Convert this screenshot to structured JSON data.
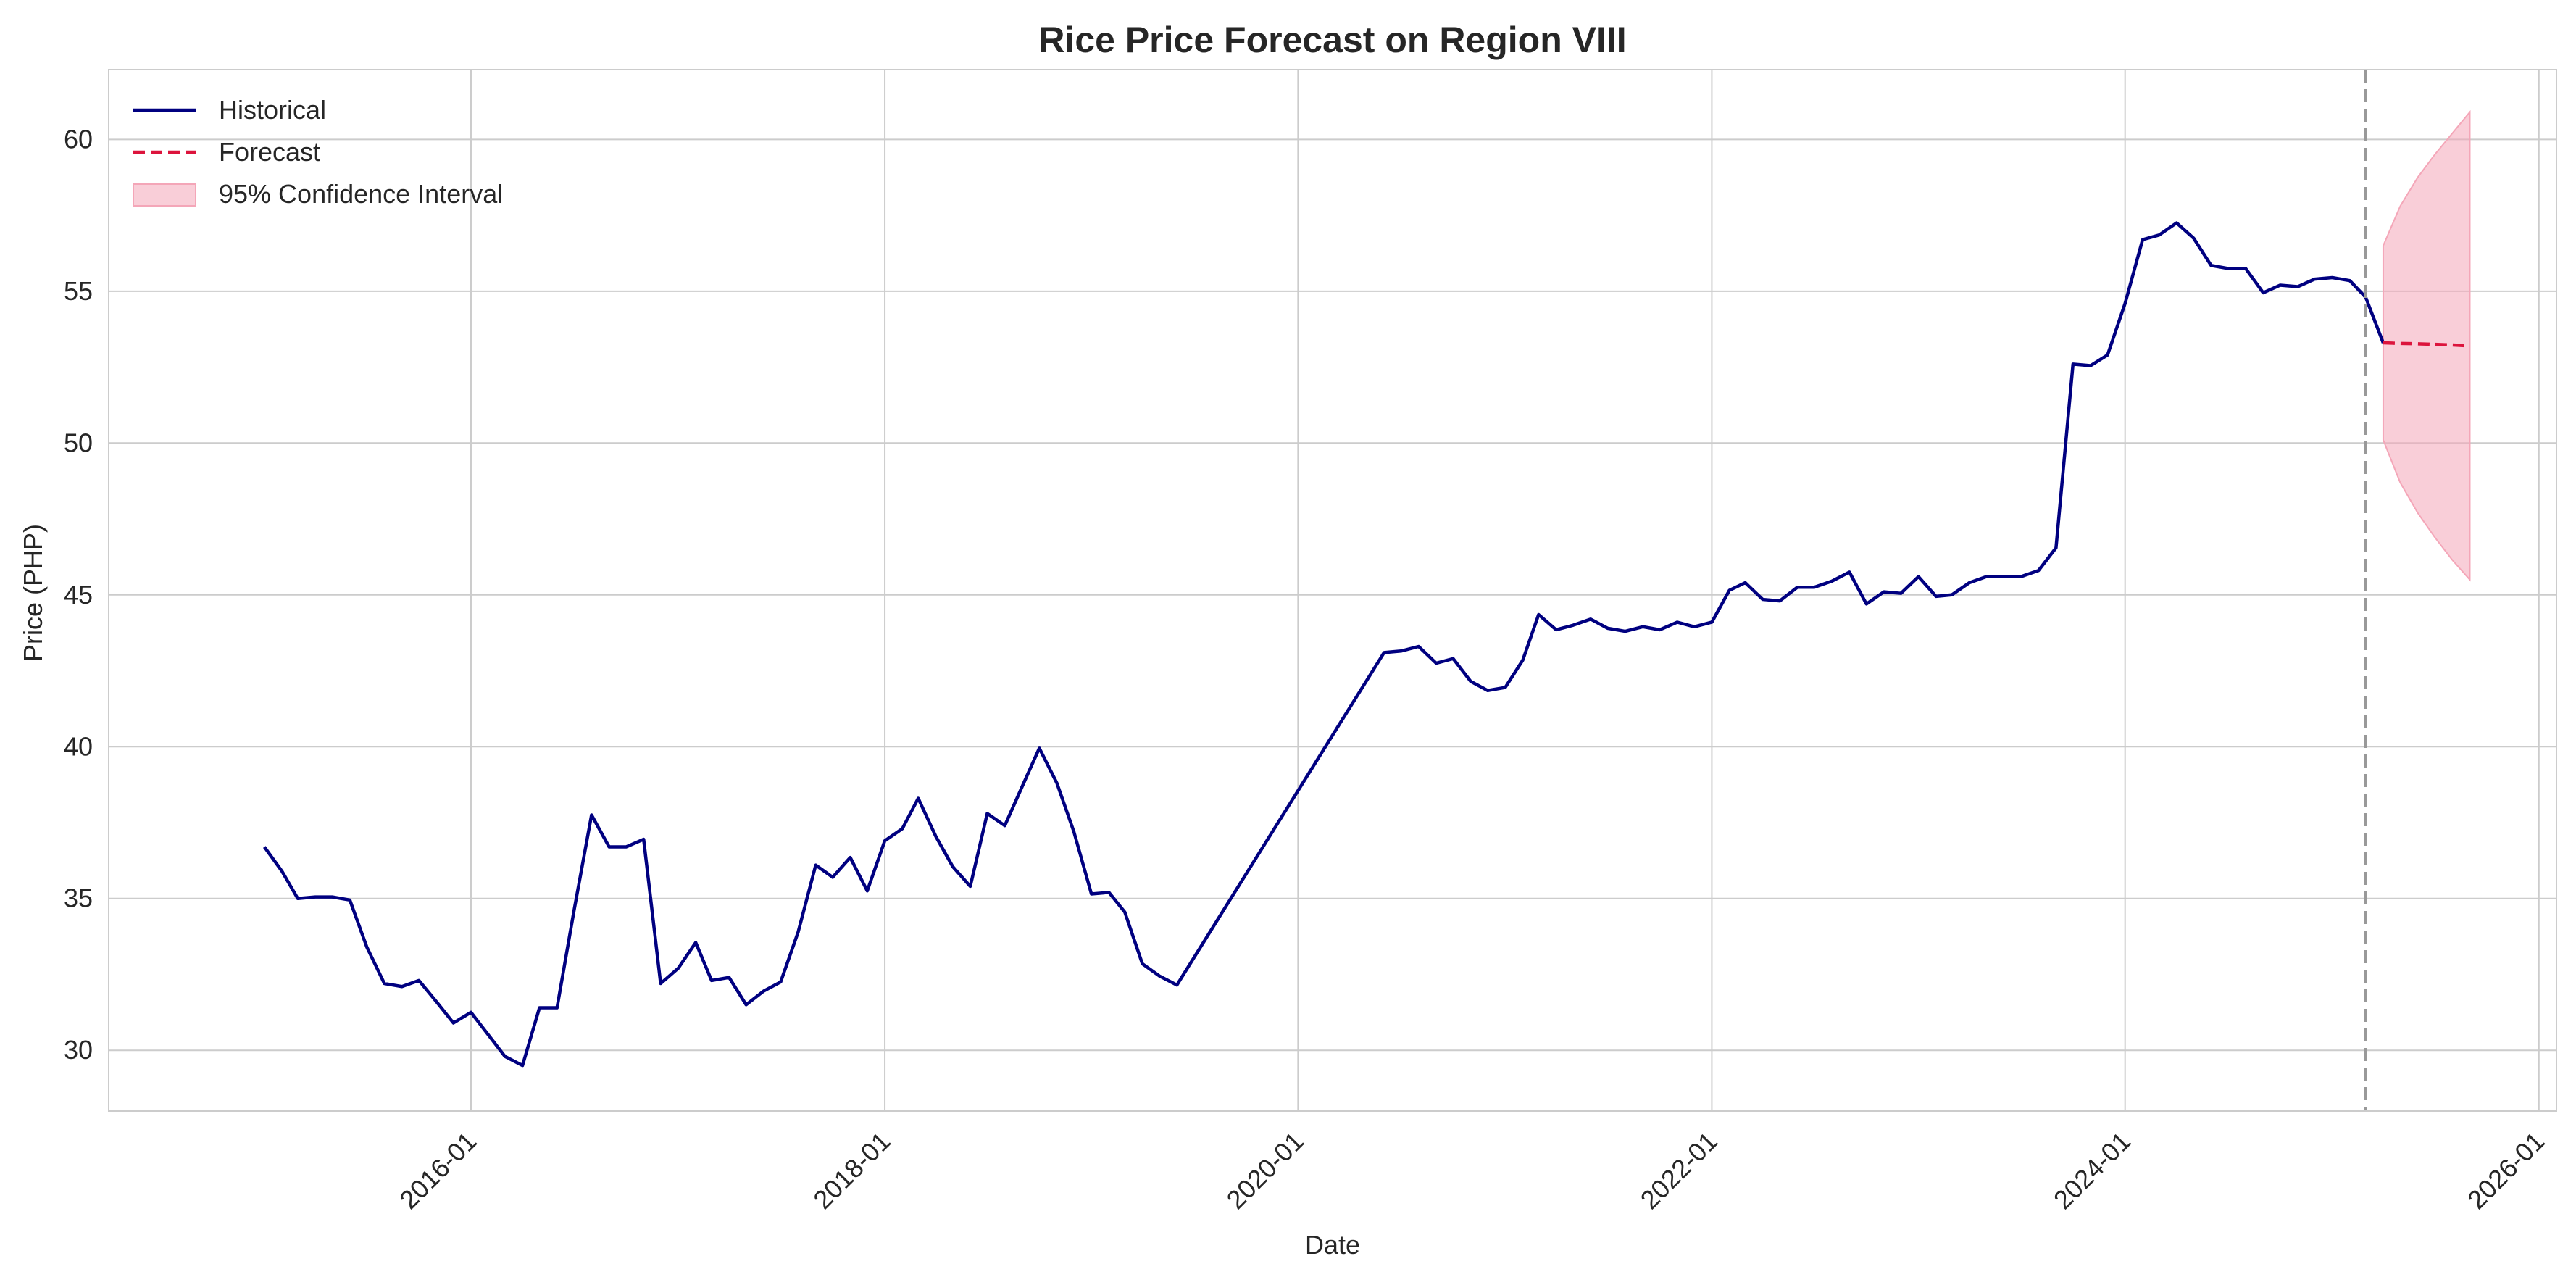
{
  "chart_data": {
    "type": "line",
    "title": "Rice Price Forecast on Region VIII",
    "xlabel": "Date",
    "ylabel": "Price (PHP)",
    "xlim": [
      "2014-04-01",
      "2026-02-01"
    ],
    "ylim": [
      28,
      62.3
    ],
    "x_ticks": [
      {
        "date": "2016-01-01",
        "label": "2016-01"
      },
      {
        "date": "2018-01-01",
        "label": "2018-01"
      },
      {
        "date": "2020-01-01",
        "label": "2020-01"
      },
      {
        "date": "2022-01-01",
        "label": "2022-01"
      },
      {
        "date": "2024-01-01",
        "label": "2024-01"
      },
      {
        "date": "2026-01-01",
        "label": "2026-01"
      }
    ],
    "y_ticks": [
      30,
      35,
      40,
      45,
      50,
      55,
      60
    ],
    "grid": true,
    "legend_position": "top-left",
    "forecast_start": "2025-03-01",
    "colors": {
      "historical": "#000080",
      "forecast": "#dc143c",
      "confidence": "#f4a6b8",
      "divider": "#999999",
      "grid": "#cccccc",
      "spine": "#cccccc"
    },
    "series": [
      {
        "name": "Historical",
        "style": "solid",
        "points": [
          [
            "2015-01-01",
            36.7
          ],
          [
            "2015-02-01",
            35.9
          ],
          [
            "2015-03-01",
            35.0
          ],
          [
            "2015-04-01",
            35.05
          ],
          [
            "2015-05-01",
            35.05
          ],
          [
            "2015-06-01",
            34.95
          ],
          [
            "2015-07-01",
            33.4
          ],
          [
            "2015-08-01",
            32.2
          ],
          [
            "2015-09-01",
            32.1
          ],
          [
            "2015-10-01",
            32.3
          ],
          [
            "2015-11-01",
            31.6
          ],
          [
            "2015-12-01",
            30.9
          ],
          [
            "2016-01-01",
            31.25
          ],
          [
            "2016-02-01",
            30.5
          ],
          [
            "2016-03-01",
            29.8
          ],
          [
            "2016-04-01",
            29.5
          ],
          [
            "2016-05-01",
            31.4
          ],
          [
            "2016-06-01",
            31.4
          ],
          [
            "2016-07-01",
            34.6
          ],
          [
            "2016-08-01",
            37.75
          ],
          [
            "2016-09-01",
            36.7
          ],
          [
            "2016-10-01",
            36.7
          ],
          [
            "2016-11-01",
            36.95
          ],
          [
            "2016-12-01",
            32.2
          ],
          [
            "2017-01-01",
            32.7
          ],
          [
            "2017-02-01",
            33.55
          ],
          [
            "2017-03-01",
            32.3
          ],
          [
            "2017-04-01",
            32.4
          ],
          [
            "2017-05-01",
            31.5
          ],
          [
            "2017-06-01",
            31.95
          ],
          [
            "2017-07-01",
            32.25
          ],
          [
            "2017-08-01",
            33.9
          ],
          [
            "2017-09-01",
            36.1
          ],
          [
            "2017-10-01",
            35.7
          ],
          [
            "2017-11-01",
            36.35
          ],
          [
            "2017-12-01",
            35.25
          ],
          [
            "2018-01-01",
            36.9
          ],
          [
            "2018-02-01",
            37.3
          ],
          [
            "2018-03-01",
            38.3
          ],
          [
            "2018-04-01",
            37.05
          ],
          [
            "2018-05-01",
            36.05
          ],
          [
            "2018-06-01",
            35.4
          ],
          [
            "2018-07-01",
            37.8
          ],
          [
            "2018-08-01",
            37.4
          ],
          [
            "2018-09-01",
            38.7
          ],
          [
            "2018-10-01",
            39.95
          ],
          [
            "2018-11-01",
            38.8
          ],
          [
            "2018-12-01",
            37.2
          ],
          [
            "2019-01-01",
            35.15
          ],
          [
            "2019-02-01",
            35.2
          ],
          [
            "2019-03-01",
            34.55
          ],
          [
            "2019-04-01",
            32.85
          ],
          [
            "2019-05-01",
            32.45
          ],
          [
            "2019-06-01",
            32.15
          ],
          [
            "2020-06-01",
            43.1
          ],
          [
            "2020-07-01",
            43.15
          ],
          [
            "2020-08-01",
            43.3
          ],
          [
            "2020-09-01",
            42.75
          ],
          [
            "2020-10-01",
            42.9
          ],
          [
            "2020-11-01",
            42.15
          ],
          [
            "2020-12-01",
            41.85
          ],
          [
            "2021-01-01",
            41.95
          ],
          [
            "2021-02-01",
            42.85
          ],
          [
            "2021-03-01",
            44.35
          ],
          [
            "2021-04-01",
            43.85
          ],
          [
            "2021-05-01",
            44.0
          ],
          [
            "2021-06-01",
            44.2
          ],
          [
            "2021-07-01",
            43.9
          ],
          [
            "2021-08-01",
            43.8
          ],
          [
            "2021-09-01",
            43.95
          ],
          [
            "2021-10-01",
            43.85
          ],
          [
            "2021-11-01",
            44.1
          ],
          [
            "2021-12-01",
            43.95
          ],
          [
            "2022-01-01",
            44.1
          ],
          [
            "2022-02-01",
            45.15
          ],
          [
            "2022-03-01",
            45.4
          ],
          [
            "2022-04-01",
            44.85
          ],
          [
            "2022-05-01",
            44.8
          ],
          [
            "2022-06-01",
            45.25
          ],
          [
            "2022-07-01",
            45.25
          ],
          [
            "2022-08-01",
            45.45
          ],
          [
            "2022-09-01",
            45.75
          ],
          [
            "2022-10-01",
            44.7
          ],
          [
            "2022-11-01",
            45.1
          ],
          [
            "2022-12-01",
            45.05
          ],
          [
            "2023-01-01",
            45.6
          ],
          [
            "2023-02-01",
            44.95
          ],
          [
            "2023-03-01",
            45.0
          ],
          [
            "2023-04-01",
            45.4
          ],
          [
            "2023-05-01",
            45.6
          ],
          [
            "2023-06-01",
            45.6
          ],
          [
            "2023-07-01",
            45.6
          ],
          [
            "2023-08-01",
            45.8
          ],
          [
            "2023-09-01",
            46.55
          ],
          [
            "2023-10-01",
            52.6
          ],
          [
            "2023-11-01",
            52.55
          ],
          [
            "2023-12-01",
            52.9
          ],
          [
            "2024-01-01",
            54.6
          ],
          [
            "2024-02-01",
            56.7
          ],
          [
            "2024-03-01",
            56.85
          ],
          [
            "2024-04-01",
            57.25
          ],
          [
            "2024-05-01",
            56.75
          ],
          [
            "2024-06-01",
            55.85
          ],
          [
            "2024-07-01",
            55.75
          ],
          [
            "2024-08-01",
            55.75
          ],
          [
            "2024-09-01",
            54.95
          ],
          [
            "2024-10-01",
            55.2
          ],
          [
            "2024-11-01",
            55.15
          ],
          [
            "2024-12-01",
            55.4
          ],
          [
            "2025-01-01",
            55.45
          ],
          [
            "2025-02-01",
            55.35
          ],
          [
            "2025-03-01",
            54.8
          ],
          [
            "2025-04-01",
            53.3
          ]
        ]
      },
      {
        "name": "Forecast",
        "style": "dashed",
        "points": [
          [
            "2025-04-01",
            53.3
          ],
          [
            "2025-05-01",
            53.28
          ],
          [
            "2025-06-01",
            53.27
          ],
          [
            "2025-07-01",
            53.25
          ],
          [
            "2025-08-01",
            53.23
          ],
          [
            "2025-09-01",
            53.2
          ]
        ]
      }
    ],
    "confidence_interval": {
      "name": "95% Confidence Interval",
      "points": [
        [
          "2025-04-01",
          50.1,
          56.5
        ],
        [
          "2025-05-01",
          48.7,
          57.8
        ],
        [
          "2025-06-01",
          47.7,
          58.75
        ],
        [
          "2025-07-01",
          46.9,
          59.5
        ],
        [
          "2025-08-01",
          46.15,
          60.2
        ],
        [
          "2025-09-01",
          45.5,
          60.9
        ]
      ]
    }
  }
}
